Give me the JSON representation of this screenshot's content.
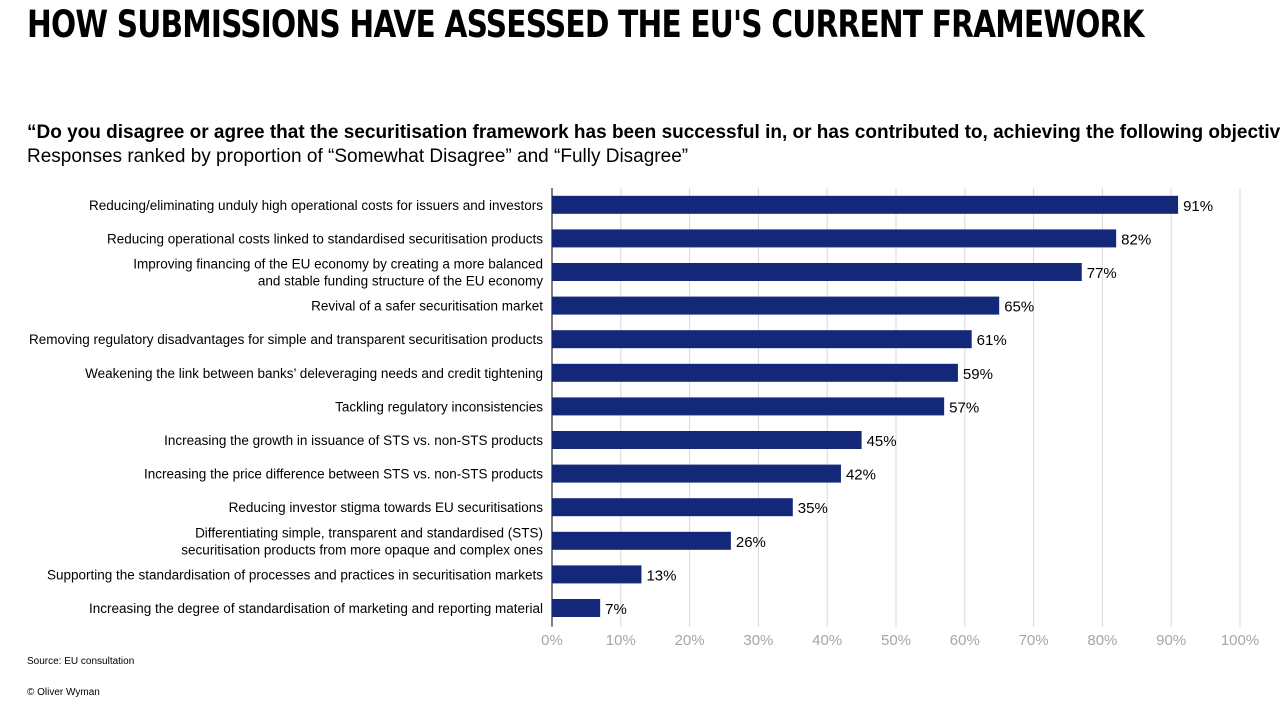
{
  "page": {
    "title": "HOW SUBMISSIONS HAVE ASSESSED THE EU'S CURRENT FRAMEWORK",
    "question": "“Do you disagree or agree that the securitisation framework has been successful in, or has contributed to, achieving the following objectives?”",
    "subtitle": "Responses ranked by proportion of “Somewhat Disagree” and “Fully Disagree”",
    "source": "Source: EU consultation",
    "copyright": "© Oliver Wyman"
  },
  "chart_data": {
    "type": "bar",
    "orientation": "horizontal",
    "bar_color": "#14287a",
    "grid": true,
    "xlim": [
      0,
      100
    ],
    "x_ticks": [
      "0%",
      "10%",
      "20%",
      "30%",
      "40%",
      "50%",
      "60%",
      "70%",
      "80%",
      "90%",
      "100%"
    ],
    "categories": [
      [
        "Reducing/eliminating unduly high operational costs for issuers and investors"
      ],
      [
        "Reducing operational costs linked to standardised securitisation products"
      ],
      [
        "Improving financing of the EU economy by creating a more balanced",
        "and stable funding structure of the EU economy"
      ],
      [
        "Revival of a safer securitisation market"
      ],
      [
        "Removing regulatory disadvantages for simple and transparent securitisation products"
      ],
      [
        "Weakening the link between banks’ deleveraging needs and credit tightening"
      ],
      [
        "Tackling regulatory inconsistencies"
      ],
      [
        "Increasing the growth in issuance of STS vs. non-STS products"
      ],
      [
        "Increasing the price difference between STS vs. non-STS products"
      ],
      [
        "Reducing investor stigma towards EU securitisations"
      ],
      [
        "Differentiating simple, transparent and standardised (STS)",
        "securitisation products from more opaque and complex ones"
      ],
      [
        "Supporting the standardisation of processes and practices in securitisation markets"
      ],
      [
        "Increasing the degree of standardisation of marketing and reporting material"
      ]
    ],
    "values": [
      91,
      82,
      77,
      65,
      61,
      59,
      57,
      45,
      42,
      35,
      26,
      13,
      7
    ],
    "value_labels": [
      "91%",
      "82%",
      "77%",
      "65%",
      "61%",
      "59%",
      "57%",
      "45%",
      "42%",
      "35%",
      "26%",
      "13%",
      "7%"
    ]
  }
}
